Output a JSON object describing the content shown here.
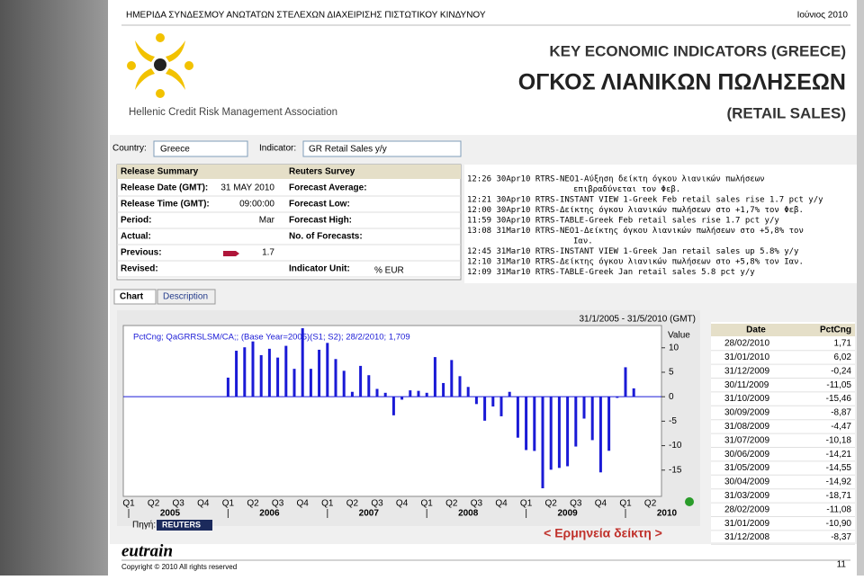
{
  "header": {
    "event": "ΗΜΕΡΙΔΑ ΣΥΝΔΕΣΜΟΥ ΑΝΩΤΑΤΩΝ ΣΤΕΛΕΧΩΝ ΔΙΑΧΕΙΡΙΣΗΣ ΠΙΣΤΩΤΙΚΟΥ ΚΙΝΔΥΝΟΥ",
    "date": "Ιούνιος 2010"
  },
  "logo_text": "Hellenic Credit Risk Management Association",
  "titles": [
    "KEY ECONOMIC INDICATORS (GREECE)",
    "ΟΓΚΟΣ ΛΙΑΝΙΚΩΝ ΠΩΛΗΣΕΩΝ",
    "(RETAIL SALES)"
  ],
  "filters": {
    "country_label": "Country:",
    "country": "Greece",
    "indicator_label": "Indicator:",
    "indicator": "GR Retail Sales y/y"
  },
  "release": {
    "headers": [
      "Release Summary",
      "Reuters Survey"
    ],
    "left": [
      {
        "label": "Release Date (GMT):",
        "value": "31 MAY 2010"
      },
      {
        "label": "Release Time (GMT):",
        "value": "09:00:00"
      },
      {
        "label": "Period:",
        "value": "Mar"
      },
      {
        "label": "Actual:"
      },
      {
        "label": "Previous:",
        "value": "1.7"
      },
      {
        "label": "Revised:"
      }
    ],
    "right": [
      {
        "label": "Forecast Average:"
      },
      {
        "label": "Forecast Low:"
      },
      {
        "label": "Forecast High:"
      },
      {
        "label": "No. of Forecasts:"
      },
      {
        "label": ""
      },
      {
        "label": "Indicator Unit:",
        "value": "% EUR"
      }
    ]
  },
  "news": [
    {
      "head": "12:26 30Apr10 RTRS-ΝΕΟ1-Αύξηση δείκτη όγκου λιανικών πωλήσεων",
      "cont": "επιβραδύνεται τον Φεβ."
    },
    {
      "head": "12:21 30Apr10 RTRS-INSTANT VIEW 1-Greek Feb retail sales rise 1.7 pct y/y"
    },
    {
      "head": "12:00 30Apr10 RTRS-Δείκτης όγκου λιανικών πωλήσεων στο +1,7% τον Φεβ."
    },
    {
      "head": "11:59 30Apr10 RTRS-TABLE-Greek Feb retail sales rise 1.7 pct y/y"
    },
    {
      "head": "13:08 31Mar10 RTRS-ΝΕΟ1-Δείκτης όγκου λιανικών πωλήσεων στο +5,8% τον",
      "cont": "Ιαν."
    },
    {
      "head": "12:45 31Mar10 RTRS-INSTANT VIEW 1-Greek Jan retail sales up 5.8% y/y"
    },
    {
      "head": "12:10 31Mar10 RTRS-Δείκτης όγκου λιανικών πωλήσεων στο +5,8% τον Ιαν."
    },
    {
      "head": "12:09 31Mar10 RTRS-TABLE-Greek Jan retail sales 5.8 pct y/y"
    }
  ],
  "tabs": [
    "Chart",
    "Description"
  ],
  "chart": {
    "type": "bar",
    "range": "31/1/2005 - 31/5/2010 (GMT)",
    "legend": "PctCng; QaGRRSLSM/CA;; (Base Year=2005)(S1; S2); 28/2/2010; 1,709",
    "axis_title": "Value",
    "color": "#1a1ad6",
    "values": [
      3.9,
      9.4,
      10.1,
      11.3,
      8.5,
      9.8,
      8.0,
      10.4,
      5.7,
      14.0,
      5.7,
      9.6,
      11.0,
      7.7,
      5.3,
      1.0,
      6.3,
      4.4,
      1.6,
      0.8,
      -3.8,
      -0.6,
      1.3,
      1.2,
      0.8,
      8.1,
      2.8,
      7.5,
      4.2,
      2.0,
      -1.5,
      -4.9,
      -2.0,
      -4.0,
      1.0,
      -8.37,
      -10.9,
      -11.08,
      -18.71,
      -14.92,
      -14.55,
      -14.21,
      -10.18,
      -4.47,
      -8.87,
      -15.46,
      -11.05,
      -0.24,
      6.02,
      1.71
    ],
    "ylim": [
      -20,
      14
    ],
    "yticks": [
      10,
      5,
      0,
      -5,
      -10,
      -15
    ],
    "quarters": [
      "Q1",
      "Q2",
      "Q3",
      "Q4",
      "Q1",
      "Q2",
      "Q3",
      "Q4",
      "Q1",
      "Q2",
      "Q3",
      "Q4",
      "Q1",
      "Q2",
      "Q3",
      "Q4",
      "Q1",
      "Q2",
      "Q3",
      "Q4",
      "Q1",
      "Q2"
    ],
    "years": [
      "2005",
      "2006",
      "2007",
      "2008",
      "2009",
      "2010"
    ],
    "source_label": "Πηγή:",
    "source": "REUTERS"
  },
  "table": {
    "headers": [
      "Date",
      "PctCng"
    ],
    "rows": [
      [
        "28/02/2010",
        "1,71"
      ],
      [
        "31/01/2010",
        "6,02"
      ],
      [
        "31/12/2009",
        "-0,24"
      ],
      [
        "30/11/2009",
        "-11,05"
      ],
      [
        "31/10/2009",
        "-15,46"
      ],
      [
        "30/09/2009",
        "-8,87"
      ],
      [
        "31/08/2009",
        "-4,47"
      ],
      [
        "31/07/2009",
        "-10,18"
      ],
      [
        "30/06/2009",
        "-14,21"
      ],
      [
        "31/05/2009",
        "-14,55"
      ],
      [
        "30/04/2009",
        "-14,92"
      ],
      [
        "31/03/2009",
        "-18,71"
      ],
      [
        "28/02/2009",
        "-11,08"
      ],
      [
        "31/01/2009",
        "-10,90"
      ],
      [
        "31/12/2008",
        "-8,37"
      ]
    ]
  },
  "link": "< Ερμηνεία δείκτη >",
  "footer": {
    "brand": "eutrain",
    "copyright": "Copyright © 2010 All rights reserved",
    "page": "11"
  }
}
